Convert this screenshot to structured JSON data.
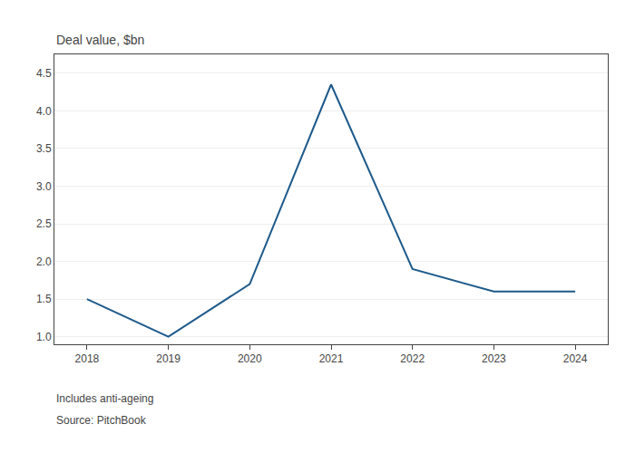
{
  "chart_data": {
    "type": "line",
    "ylabel": "Deal value, $bn",
    "x": [
      2018,
      2019,
      2020,
      2021,
      2022,
      2023,
      2024
    ],
    "values": [
      1.5,
      1.0,
      1.7,
      4.35,
      1.9,
      1.6,
      1.6
    ],
    "color": "#1f5a8b",
    "xlim": [
      2017.6,
      2024.4
    ],
    "xticks": [
      2018,
      2019,
      2020,
      2021,
      2022,
      2023,
      2024
    ],
    "ylim": [
      0.9,
      4.75
    ],
    "yticks": [
      {
        "value": 1.0,
        "label": "1.0"
      },
      {
        "value": 1.5,
        "label": "1.5"
      },
      {
        "value": 2.0,
        "label": "2.0"
      },
      {
        "value": 2.5,
        "label": "2.5"
      },
      {
        "value": 3.0,
        "label": "3.0"
      },
      {
        "value": 3.5,
        "label": "3.5"
      },
      {
        "value": 4.0,
        "label": "4.0"
      },
      {
        "value": 4.5,
        "label": "4.5"
      }
    ],
    "grid": true,
    "annotations": [
      "Includes anti-ageing",
      "Source: PitchBook"
    ]
  }
}
